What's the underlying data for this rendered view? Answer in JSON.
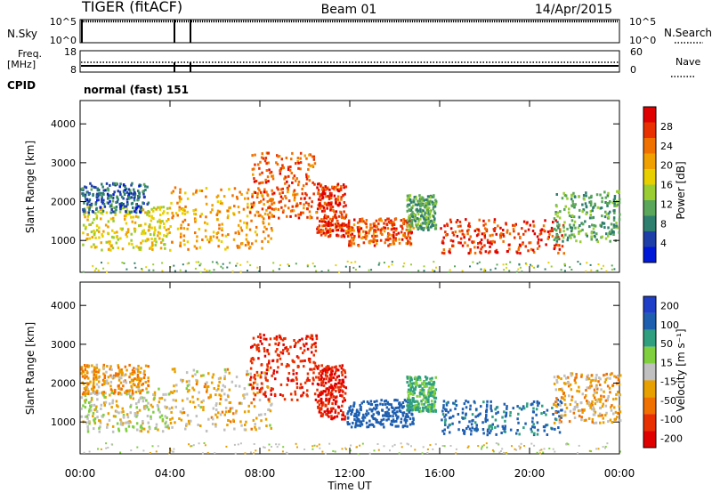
{
  "header": {
    "radar": "TIGER (fitACF)",
    "beam": "Beam 01",
    "date": "14/Apr/2015"
  },
  "top_panels": {
    "nsky_label": "N.Sky",
    "nsearch_label": "N.Search",
    "count_ticks": [
      "10^5",
      "10^0"
    ],
    "freq_label": "Freq.",
    "freq_unit": "[MHz]",
    "freq_ticks": [
      "18",
      "8"
    ],
    "nave_label": "Nave",
    "nave_ticks": [
      "60",
      "0"
    ],
    "cpid_label": "CPID",
    "cpid_value": "normal (fast) 151"
  },
  "colorbars": {
    "power": {
      "label": "Power [dB]",
      "ticks": [
        "4",
        "8",
        "12",
        "16",
        "20",
        "24",
        "28"
      ],
      "colors": [
        "#0018d8",
        "#1f3fa8",
        "#2f7f6f",
        "#5aa65a",
        "#9acd32",
        "#e8d000",
        "#f0a000",
        "#f07000",
        "#e83000",
        "#e00000"
      ]
    },
    "velocity": {
      "label": "Velocity [m s⁻¹]",
      "ticks": [
        "200",
        "100",
        "50",
        "15",
        "-15",
        "-50",
        "-100",
        "-200"
      ],
      "colors": [
        "#1f3fc8",
        "#1f5fb0",
        "#2f9f7f",
        "#7fcf3f",
        "#c0c0c0",
        "#e8a000",
        "#f07000",
        "#e83000",
        "#e00000"
      ]
    }
  },
  "axes": {
    "xlabel": "Time UT",
    "ylabel": "Slant Range [km]",
    "x_ticks": [
      "00:00",
      "04:00",
      "08:00",
      "12:00",
      "16:00",
      "20:00",
      "00:00"
    ],
    "y_ticks": [
      "1000",
      "2000",
      "3000",
      "4000"
    ]
  },
  "chart_data": {
    "type": "heatmap",
    "title": "TIGER (fitACF)  Beam 01  14/Apr/2015",
    "xlabel": "Time UT",
    "ylabel": "Slant Range [km]",
    "xlim": [
      0,
      24
    ],
    "ylim": [
      180,
      4600
    ],
    "x_ticks_hours": [
      0,
      4,
      8,
      12,
      16,
      20,
      24
    ],
    "y_ticks_km": [
      1000,
      2000,
      3000,
      4000
    ],
    "power_scale_db": [
      0,
      30
    ],
    "velocity_scale_ms": [
      -250,
      250
    ],
    "echo_regions": [
      {
        "t0": 0.0,
        "t1": 4.0,
        "r0": 780,
        "r1": 1900,
        "power_db": 16,
        "velocity_ms": 0
      },
      {
        "t0": 0.0,
        "t1": 3.0,
        "r0": 1750,
        "r1": 2500,
        "power_db": 6,
        "velocity_ms": -40
      },
      {
        "t0": 4.0,
        "t1": 8.5,
        "r0": 800,
        "r1": 2400,
        "power_db": 20,
        "velocity_ms": -20
      },
      {
        "t0": 7.5,
        "t1": 10.5,
        "r0": 1600,
        "r1": 3300,
        "power_db": 24,
        "velocity_ms": -180
      },
      {
        "t0": 10.5,
        "t1": 11.8,
        "r0": 1100,
        "r1": 2500,
        "power_db": 26,
        "velocity_ms": -200
      },
      {
        "t0": 11.8,
        "t1": 14.8,
        "r0": 900,
        "r1": 1600,
        "power_db": 24,
        "velocity_ms": 150
      },
      {
        "t0": 14.5,
        "t1": 15.8,
        "r0": 1300,
        "r1": 2200,
        "power_db": 10,
        "velocity_ms": 60
      },
      {
        "t0": 16.0,
        "t1": 21.5,
        "r0": 700,
        "r1": 1600,
        "power_db": 26,
        "velocity_ms": 120
      },
      {
        "t0": 21.0,
        "t1": 24.0,
        "r0": 1000,
        "r1": 2300,
        "power_db": 10,
        "velocity_ms": -30
      }
    ],
    "cpid_gaps_hours": [
      4.4,
      4.9
    ]
  }
}
